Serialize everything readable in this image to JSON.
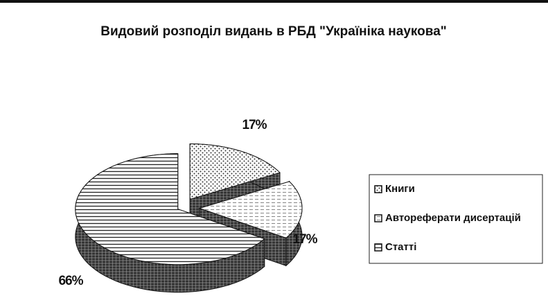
{
  "chart_data": {
    "type": "pie",
    "title": "Видовий розподіл видань в РБД \"Україніка наукова\"",
    "categories": [
      "Книги",
      "Автореферати дисертацій",
      "Статті"
    ],
    "values": [
      17,
      17,
      66
    ],
    "value_labels": [
      "17%",
      "17%",
      "66%"
    ]
  }
}
